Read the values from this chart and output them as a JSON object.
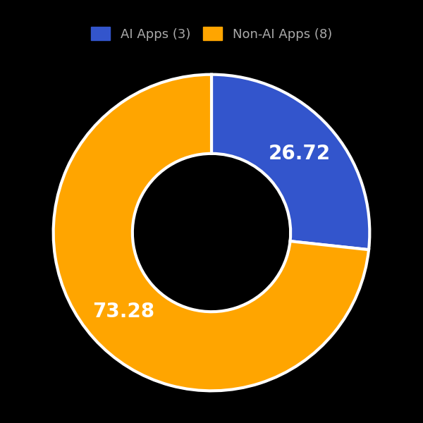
{
  "labels": [
    "AI Apps",
    "Non-AI Apps"
  ],
  "values": [
    26.72,
    73.28
  ],
  "colors": [
    "#3355cc",
    "#FFA500"
  ],
  "text_labels": [
    "26.72",
    "73.28"
  ],
  "background_color": "#000000",
  "legend_labels": [
    "AI Apps (3)",
    "Non-AI Apps (8)"
  ],
  "wedge_linewidth": 3,
  "wedge_linecolor": "#ffffff",
  "donut_hole_ratio": 0.5,
  "startangle": 90,
  "text_color": "white",
  "text_fontsize": 20,
  "text_fontweight": "bold",
  "legend_fontsize": 13,
  "legend_text_color": "#aaaaaa"
}
